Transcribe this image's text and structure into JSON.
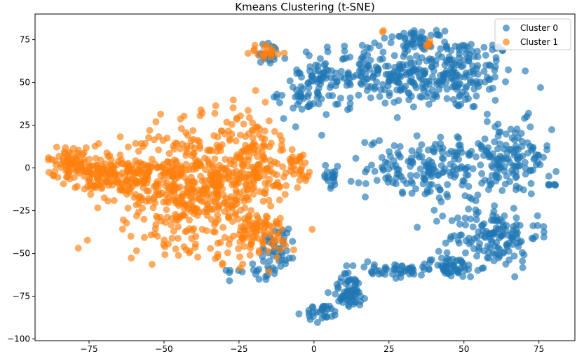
{
  "chart_data": {
    "type": "scatter",
    "title": "Kmeans Clustering (t-SNE)",
    "xlabel": "",
    "ylabel": "",
    "xlim": [
      -93,
      87
    ],
    "ylim": [
      -101,
      90
    ],
    "xticks": [
      -75,
      -50,
      -25,
      0,
      25,
      50,
      75
    ],
    "yticks": [
      -100,
      -75,
      -50,
      -25,
      0,
      25,
      50,
      75
    ],
    "xtick_labels": [
      "−75",
      "−50",
      "−25",
      "0",
      "25",
      "50",
      "75"
    ],
    "ytick_labels": [
      "−100",
      "−75",
      "−50",
      "−25",
      "0",
      "25",
      "50",
      "75"
    ],
    "grid": false,
    "legend_position": "top-right",
    "series": [
      {
        "name": "Cluster 0",
        "color": "#1f77b4",
        "alpha": 0.65,
        "regions": [
          {
            "cx": 45,
            "cy": 55,
            "rx": 22,
            "ry": 22,
            "n": 220
          },
          {
            "cx": 18,
            "cy": 55,
            "rx": 18,
            "ry": 18,
            "n": 140
          },
          {
            "cx": -2,
            "cy": 45,
            "rx": 10,
            "ry": 18,
            "n": 70
          },
          {
            "cx": 35,
            "cy": 75,
            "rx": 8,
            "ry": 5,
            "n": 40
          },
          {
            "cx": -15,
            "cy": 65,
            "rx": 6,
            "ry": 8,
            "n": 20
          },
          {
            "cx": 40,
            "cy": 0,
            "rx": 22,
            "ry": 18,
            "n": 180
          },
          {
            "cx": 65,
            "cy": 5,
            "rx": 14,
            "ry": 22,
            "n": 120
          },
          {
            "cx": 60,
            "cy": -40,
            "rx": 15,
            "ry": 18,
            "n": 140
          },
          {
            "cx": 45,
            "cy": -58,
            "rx": 10,
            "ry": 6,
            "n": 60
          },
          {
            "cx": 25,
            "cy": -60,
            "rx": 12,
            "ry": 5,
            "n": 40
          },
          {
            "cx": 12,
            "cy": -72,
            "rx": 6,
            "ry": 10,
            "n": 60
          },
          {
            "cx": 3,
            "cy": -85,
            "rx": 6,
            "ry": 5,
            "n": 30
          },
          {
            "cx": -12,
            "cy": -45,
            "rx": 6,
            "ry": 14,
            "n": 40
          },
          {
            "cx": -18,
            "cy": -60,
            "rx": 10,
            "ry": 5,
            "n": 20
          },
          {
            "cx": 5,
            "cy": -5,
            "rx": 4,
            "ry": 6,
            "n": 18
          },
          {
            "cx": 80,
            "cy": -10,
            "rx": 2,
            "ry": 1,
            "n": 6
          }
        ]
      },
      {
        "name": "Cluster 1",
        "color": "#ff7f0e",
        "alpha": 0.65,
        "regions": [
          {
            "cx": -40,
            "cy": -10,
            "rx": 24,
            "ry": 35,
            "n": 500
          },
          {
            "cx": -20,
            "cy": 5,
            "rx": 12,
            "ry": 28,
            "n": 130
          },
          {
            "cx": -65,
            "cy": -5,
            "rx": 12,
            "ry": 14,
            "n": 140
          },
          {
            "cx": -80,
            "cy": 3,
            "rx": 9,
            "ry": 10,
            "n": 90
          },
          {
            "cx": -20,
            "cy": -40,
            "rx": 14,
            "ry": 14,
            "n": 90
          },
          {
            "cx": -5,
            "cy": 3,
            "rx": 4,
            "ry": 8,
            "n": 25
          },
          {
            "cx": -15,
            "cy": 68,
            "rx": 6,
            "ry": 5,
            "n": 20
          },
          {
            "cx": 38,
            "cy": 72,
            "rx": 2,
            "ry": 3,
            "n": 5
          },
          {
            "cx": 23,
            "cy": 80,
            "rx": 2,
            "ry": 1,
            "n": 2
          }
        ]
      }
    ]
  }
}
